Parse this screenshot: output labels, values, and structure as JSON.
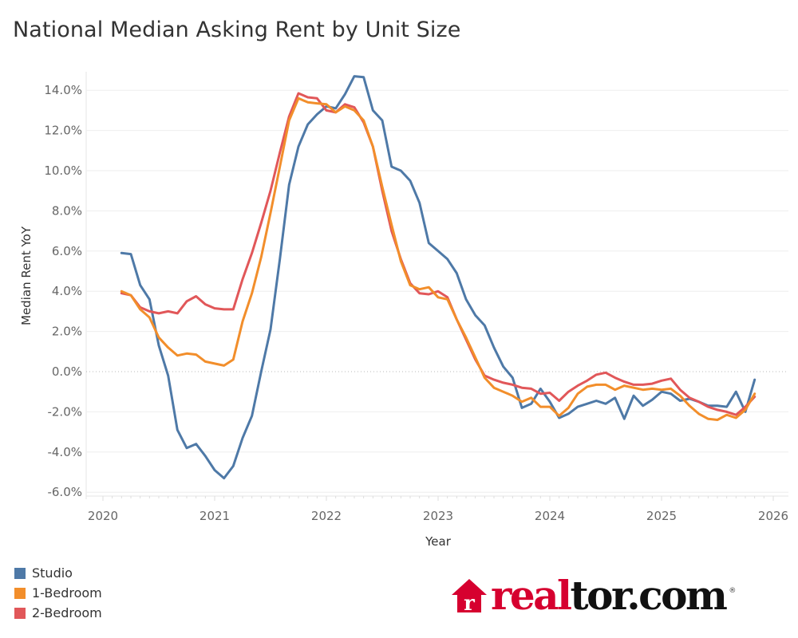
{
  "header": {
    "title": "National Median Asking Rent by Unit Size"
  },
  "chart_data": {
    "type": "line",
    "title": "National Median Asking Rent by Unit Size",
    "xlabel": "Year",
    "ylabel": "Median Rent YoY",
    "x_start": "2020-03",
    "x_frequency": "monthly",
    "xlim": [
      2020.0,
      2026.0
    ],
    "ylim": [
      -6.5,
      14.5
    ],
    "x_ticks": [
      "2020",
      "2021",
      "2022",
      "2023",
      "2024",
      "2025",
      "2026"
    ],
    "y_ticks": [
      "14.0%",
      "12.0%",
      "10.0%",
      "8.0%",
      "6.0%",
      "4.0%",
      "2.0%",
      "0.0%",
      "-2.0%",
      "-4.0%",
      "-6.0%"
    ],
    "y_tick_values": [
      14,
      12,
      10,
      8,
      6,
      4,
      2,
      0,
      -2,
      -4,
      -6
    ],
    "grid": true,
    "zero_line": "dotted",
    "legend_position": "bottom-left",
    "series": [
      {
        "name": "Studio",
        "color": "#4e79a7",
        "values": [
          5.9,
          5.85,
          4.3,
          3.6,
          1.3,
          -0.2,
          -2.9,
          -3.8,
          -3.6,
          -4.2,
          -4.9,
          -5.3,
          -4.7,
          -3.3,
          -2.2,
          0.0,
          2.1,
          5.6,
          9.3,
          11.2,
          12.3,
          12.8,
          13.2,
          13.1,
          13.8,
          14.7,
          14.65,
          13.0,
          12.5,
          10.2,
          10.0,
          9.5,
          8.4,
          6.4,
          6.0,
          5.6,
          4.9,
          3.6,
          2.8,
          2.3,
          1.2,
          0.25,
          -0.3,
          -1.8,
          -1.6,
          -0.85,
          -1.5,
          -2.3,
          -2.1,
          -1.75,
          -1.6,
          -1.45,
          -1.6,
          -1.3,
          -2.35,
          -1.2,
          -1.7,
          -1.4,
          -1.0,
          -1.1,
          -1.45,
          -1.35,
          -1.5,
          -1.7,
          -1.7,
          -1.75,
          -1.0,
          -2.0,
          -0.4
        ]
      },
      {
        "name": "1-Bedroom",
        "color": "#f28e2b",
        "values": [
          4.0,
          3.8,
          3.1,
          2.7,
          1.7,
          1.2,
          0.8,
          0.9,
          0.85,
          0.5,
          0.4,
          0.3,
          0.6,
          2.5,
          3.9,
          5.7,
          7.9,
          10.2,
          12.5,
          13.6,
          13.4,
          13.35,
          13.3,
          12.9,
          13.2,
          13.0,
          12.5,
          11.2,
          9.2,
          7.3,
          5.5,
          4.3,
          4.1,
          4.2,
          3.7,
          3.6,
          2.6,
          1.7,
          0.7,
          -0.3,
          -0.8,
          -1.0,
          -1.2,
          -1.5,
          -1.3,
          -1.75,
          -1.75,
          -2.2,
          -1.8,
          -1.1,
          -0.75,
          -0.65,
          -0.65,
          -0.9,
          -0.7,
          -0.8,
          -0.9,
          -0.85,
          -0.9,
          -0.85,
          -1.2,
          -1.7,
          -2.1,
          -2.35,
          -2.4,
          -2.15,
          -2.3,
          -1.9,
          -1.1
        ]
      },
      {
        "name": "2-Bedroom",
        "color": "#e15759",
        "values": [
          3.9,
          3.8,
          3.2,
          3.0,
          2.9,
          3.0,
          2.9,
          3.5,
          3.75,
          3.35,
          3.15,
          3.1,
          3.1,
          4.6,
          5.9,
          7.4,
          9.0,
          10.9,
          12.7,
          13.85,
          13.65,
          13.6,
          13.0,
          12.9,
          13.3,
          13.15,
          12.4,
          11.2,
          9.0,
          7.0,
          5.6,
          4.4,
          3.9,
          3.85,
          4.0,
          3.7,
          2.6,
          1.6,
          0.6,
          -0.2,
          -0.4,
          -0.55,
          -0.65,
          -0.8,
          -0.85,
          -1.1,
          -1.05,
          -1.45,
          -1.0,
          -0.7,
          -0.45,
          -0.15,
          -0.05,
          -0.3,
          -0.5,
          -0.65,
          -0.65,
          -0.6,
          -0.45,
          -0.35,
          -0.9,
          -1.3,
          -1.5,
          -1.75,
          -1.9,
          -2.0,
          -2.15,
          -1.75,
          -1.25
        ]
      }
    ]
  },
  "legend": {
    "items": [
      {
        "label": "Studio",
        "color": "#4e79a7"
      },
      {
        "label": "1-Bedroom",
        "color": "#f28e2b"
      },
      {
        "label": "2-Bedroom",
        "color": "#e15759"
      }
    ]
  },
  "logo": {
    "red_text": "real",
    "black_text": "tor.com",
    "registered": "®",
    "brand_color": "#d6002f"
  }
}
